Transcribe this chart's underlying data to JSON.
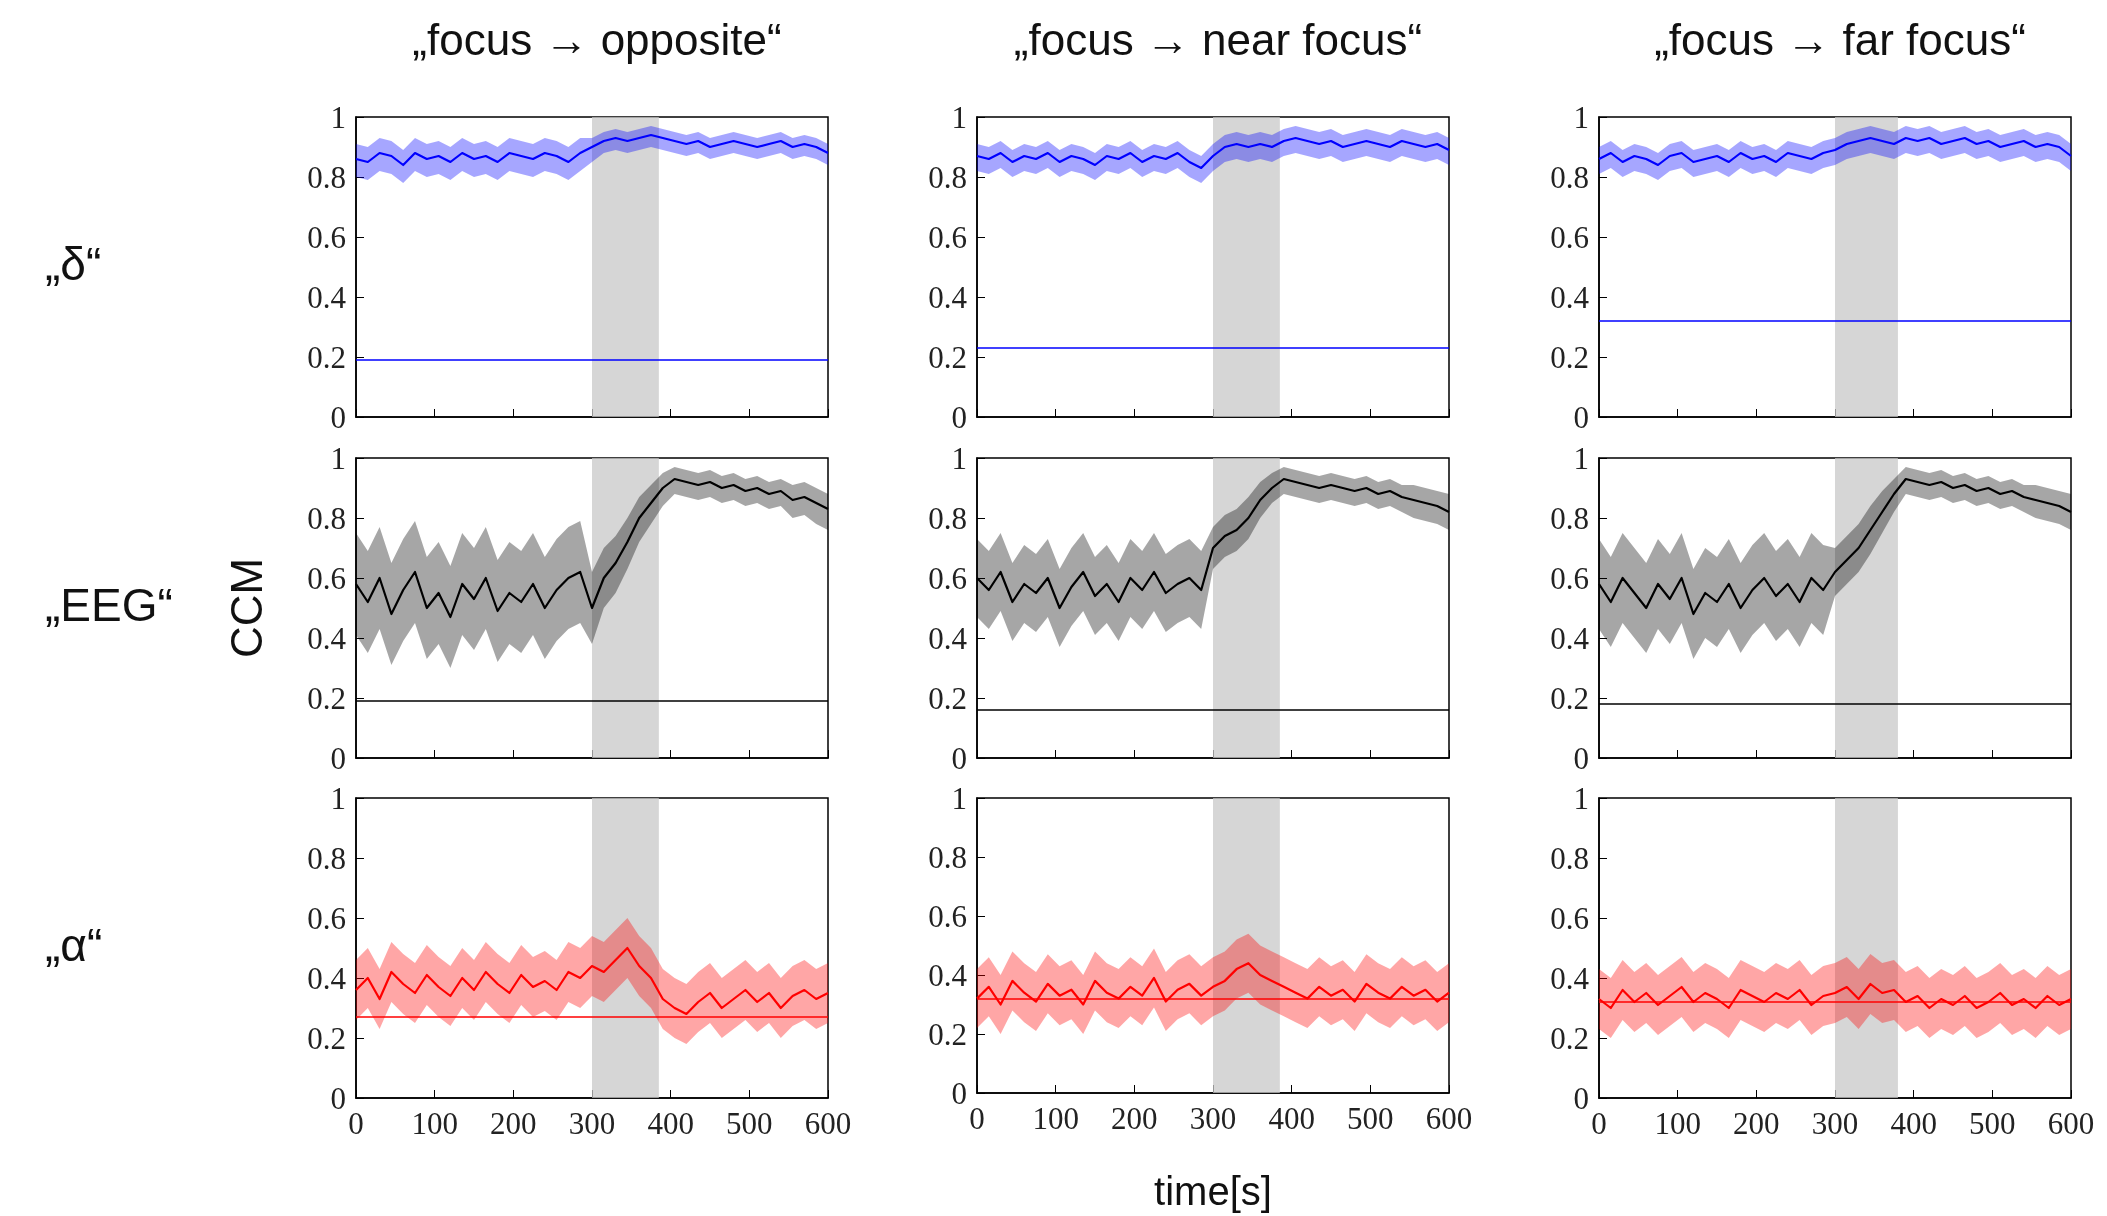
{
  "chart_data": [
    {
      "type": "line",
      "title": "„focus → opposite“",
      "annotations": [
        "„δ“"
      ],
      "tick_labels": "y",
      "xlim": [
        0,
        600
      ],
      "xticks": [
        0,
        100,
        200,
        300,
        400,
        500,
        600
      ],
      "ylim": [
        0,
        1
      ],
      "yticks": [
        0,
        0.2,
        0.4,
        0.6,
        0.8,
        1
      ],
      "x": [
        0,
        15,
        30,
        45,
        60,
        75,
        90,
        105,
        120,
        135,
        150,
        165,
        180,
        195,
        210,
        225,
        240,
        255,
        270,
        285,
        300,
        315,
        330,
        345,
        360,
        375,
        390,
        405,
        420,
        435,
        450,
        465,
        480,
        495,
        510,
        525,
        540,
        555,
        570,
        585,
        600
      ],
      "series": [
        {
          "color": "#0000ff",
          "values": [
            0.86,
            0.85,
            0.88,
            0.87,
            0.84,
            0.88,
            0.86,
            0.87,
            0.85,
            0.88,
            0.86,
            0.87,
            0.85,
            0.88,
            0.87,
            0.86,
            0.88,
            0.87,
            0.85,
            0.88,
            0.9,
            0.92,
            0.93,
            0.92,
            0.93,
            0.94,
            0.93,
            0.92,
            0.91,
            0.92,
            0.9,
            0.91,
            0.92,
            0.91,
            0.9,
            0.91,
            0.92,
            0.9,
            0.91,
            0.9,
            0.88
          ],
          "lower": [
            0.8,
            0.79,
            0.82,
            0.81,
            0.78,
            0.82,
            0.8,
            0.81,
            0.79,
            0.82,
            0.8,
            0.81,
            0.79,
            0.82,
            0.81,
            0.8,
            0.82,
            0.81,
            0.79,
            0.82,
            0.85,
            0.88,
            0.89,
            0.88,
            0.89,
            0.9,
            0.89,
            0.88,
            0.87,
            0.88,
            0.86,
            0.87,
            0.88,
            0.87,
            0.86,
            0.87,
            0.88,
            0.86,
            0.87,
            0.86,
            0.84
          ],
          "upper": [
            0.91,
            0.9,
            0.93,
            0.92,
            0.89,
            0.93,
            0.91,
            0.92,
            0.9,
            0.93,
            0.91,
            0.92,
            0.9,
            0.93,
            0.92,
            0.91,
            0.93,
            0.92,
            0.9,
            0.93,
            0.93,
            0.95,
            0.96,
            0.95,
            0.96,
            0.97,
            0.96,
            0.95,
            0.94,
            0.95,
            0.93,
            0.94,
            0.95,
            0.94,
            0.93,
            0.94,
            0.95,
            0.93,
            0.94,
            0.93,
            0.91
          ]
        }
      ],
      "ref_lines": [
        {
          "axis": "y",
          "value": 0.19,
          "color": "#0000ff"
        }
      ],
      "bands": [
        {
          "axis": "x",
          "from": 300,
          "to": 385,
          "color": "#c8c8c8"
        }
      ]
    },
    {
      "type": "line",
      "title": "„focus → near focus“",
      "tick_labels": "y",
      "xlim": [
        0,
        600
      ],
      "xticks": [
        0,
        100,
        200,
        300,
        400,
        500,
        600
      ],
      "ylim": [
        0,
        1
      ],
      "yticks": [
        0,
        0.2,
        0.4,
        0.6,
        0.8,
        1
      ],
      "x": [
        0,
        15,
        30,
        45,
        60,
        75,
        90,
        105,
        120,
        135,
        150,
        165,
        180,
        195,
        210,
        225,
        240,
        255,
        270,
        285,
        300,
        315,
        330,
        345,
        360,
        375,
        390,
        405,
        420,
        435,
        450,
        465,
        480,
        495,
        510,
        525,
        540,
        555,
        570,
        585,
        600
      ],
      "series": [
        {
          "color": "#0000ff",
          "values": [
            0.87,
            0.86,
            0.88,
            0.85,
            0.87,
            0.86,
            0.88,
            0.85,
            0.87,
            0.86,
            0.84,
            0.87,
            0.86,
            0.88,
            0.85,
            0.87,
            0.86,
            0.88,
            0.85,
            0.83,
            0.87,
            0.9,
            0.91,
            0.9,
            0.91,
            0.9,
            0.92,
            0.93,
            0.92,
            0.91,
            0.92,
            0.9,
            0.91,
            0.92,
            0.91,
            0.9,
            0.92,
            0.91,
            0.9,
            0.91,
            0.89
          ],
          "lower": [
            0.82,
            0.81,
            0.83,
            0.8,
            0.82,
            0.81,
            0.83,
            0.8,
            0.82,
            0.81,
            0.79,
            0.82,
            0.81,
            0.83,
            0.8,
            0.82,
            0.81,
            0.83,
            0.8,
            0.78,
            0.82,
            0.85,
            0.86,
            0.85,
            0.86,
            0.85,
            0.87,
            0.88,
            0.87,
            0.86,
            0.87,
            0.85,
            0.86,
            0.87,
            0.86,
            0.85,
            0.87,
            0.86,
            0.85,
            0.86,
            0.84
          ],
          "upper": [
            0.91,
            0.9,
            0.92,
            0.89,
            0.91,
            0.9,
            0.92,
            0.89,
            0.91,
            0.9,
            0.88,
            0.91,
            0.9,
            0.92,
            0.89,
            0.91,
            0.9,
            0.92,
            0.89,
            0.87,
            0.91,
            0.94,
            0.95,
            0.94,
            0.95,
            0.94,
            0.96,
            0.97,
            0.96,
            0.95,
            0.96,
            0.94,
            0.95,
            0.96,
            0.95,
            0.94,
            0.96,
            0.95,
            0.94,
            0.95,
            0.93
          ]
        }
      ],
      "ref_lines": [
        {
          "axis": "y",
          "value": 0.23,
          "color": "#0000ff"
        }
      ],
      "bands": [
        {
          "axis": "x",
          "from": 300,
          "to": 385,
          "color": "#c8c8c8"
        }
      ]
    },
    {
      "type": "line",
      "title": "„focus → far focus“",
      "tick_labels": "y",
      "xlim": [
        0,
        600
      ],
      "xticks": [
        0,
        100,
        200,
        300,
        400,
        500,
        600
      ],
      "ylim": [
        0,
        1
      ],
      "yticks": [
        0,
        0.2,
        0.4,
        0.6,
        0.8,
        1
      ],
      "x": [
        0,
        15,
        30,
        45,
        60,
        75,
        90,
        105,
        120,
        135,
        150,
        165,
        180,
        195,
        210,
        225,
        240,
        255,
        270,
        285,
        300,
        315,
        330,
        345,
        360,
        375,
        390,
        405,
        420,
        435,
        450,
        465,
        480,
        495,
        510,
        525,
        540,
        555,
        570,
        585,
        600
      ],
      "series": [
        {
          "color": "#0000ff",
          "values": [
            0.86,
            0.88,
            0.85,
            0.87,
            0.86,
            0.84,
            0.87,
            0.88,
            0.85,
            0.86,
            0.87,
            0.85,
            0.88,
            0.86,
            0.87,
            0.85,
            0.88,
            0.87,
            0.86,
            0.88,
            0.89,
            0.91,
            0.92,
            0.93,
            0.92,
            0.91,
            0.93,
            0.92,
            0.93,
            0.91,
            0.92,
            0.93,
            0.91,
            0.92,
            0.9,
            0.91,
            0.92,
            0.9,
            0.91,
            0.9,
            0.87
          ],
          "lower": [
            0.81,
            0.83,
            0.8,
            0.82,
            0.81,
            0.79,
            0.82,
            0.83,
            0.8,
            0.81,
            0.82,
            0.8,
            0.83,
            0.81,
            0.82,
            0.8,
            0.83,
            0.82,
            0.81,
            0.83,
            0.84,
            0.86,
            0.87,
            0.88,
            0.87,
            0.86,
            0.88,
            0.87,
            0.88,
            0.86,
            0.87,
            0.88,
            0.86,
            0.87,
            0.85,
            0.86,
            0.87,
            0.85,
            0.86,
            0.85,
            0.82
          ],
          "upper": [
            0.9,
            0.92,
            0.89,
            0.91,
            0.9,
            0.88,
            0.91,
            0.92,
            0.89,
            0.9,
            0.91,
            0.89,
            0.92,
            0.9,
            0.91,
            0.89,
            0.92,
            0.91,
            0.9,
            0.92,
            0.93,
            0.95,
            0.96,
            0.97,
            0.96,
            0.95,
            0.97,
            0.96,
            0.97,
            0.95,
            0.96,
            0.97,
            0.95,
            0.96,
            0.94,
            0.95,
            0.96,
            0.94,
            0.95,
            0.94,
            0.91
          ]
        }
      ],
      "ref_lines": [
        {
          "axis": "y",
          "value": 0.32,
          "color": "#0000ff"
        }
      ],
      "bands": [
        {
          "axis": "x",
          "from": 300,
          "to": 380,
          "color": "#c8c8c8"
        }
      ]
    },
    {
      "type": "line",
      "ylabel": "CCM",
      "annotations": [
        "„EEG“"
      ],
      "tick_labels": "y",
      "xlim": [
        0,
        600
      ],
      "xticks": [
        0,
        100,
        200,
        300,
        400,
        500,
        600
      ],
      "ylim": [
        0,
        1
      ],
      "yticks": [
        0,
        0.2,
        0.4,
        0.6,
        0.8,
        1
      ],
      "x": [
        0,
        15,
        30,
        45,
        60,
        75,
        90,
        105,
        120,
        135,
        150,
        165,
        180,
        195,
        210,
        225,
        240,
        255,
        270,
        285,
        300,
        315,
        330,
        345,
        360,
        375,
        390,
        405,
        420,
        435,
        450,
        465,
        480,
        495,
        510,
        525,
        540,
        555,
        570,
        585,
        600
      ],
      "series": [
        {
          "color": "#000000",
          "values": [
            0.58,
            0.52,
            0.6,
            0.48,
            0.56,
            0.62,
            0.5,
            0.55,
            0.47,
            0.58,
            0.53,
            0.6,
            0.49,
            0.55,
            0.52,
            0.58,
            0.5,
            0.56,
            0.6,
            0.62,
            0.5,
            0.6,
            0.65,
            0.72,
            0.8,
            0.85,
            0.9,
            0.93,
            0.92,
            0.91,
            0.92,
            0.9,
            0.91,
            0.89,
            0.9,
            0.88,
            0.89,
            0.86,
            0.87,
            0.85,
            0.83
          ],
          "lower": [
            0.41,
            0.35,
            0.43,
            0.31,
            0.39,
            0.45,
            0.33,
            0.38,
            0.3,
            0.41,
            0.36,
            0.43,
            0.32,
            0.38,
            0.35,
            0.41,
            0.33,
            0.39,
            0.43,
            0.45,
            0.38,
            0.5,
            0.55,
            0.63,
            0.72,
            0.78,
            0.84,
            0.88,
            0.87,
            0.86,
            0.87,
            0.85,
            0.86,
            0.84,
            0.85,
            0.83,
            0.84,
            0.8,
            0.81,
            0.78,
            0.76
          ],
          "upper": [
            0.75,
            0.69,
            0.77,
            0.65,
            0.73,
            0.79,
            0.67,
            0.72,
            0.64,
            0.75,
            0.7,
            0.77,
            0.66,
            0.72,
            0.69,
            0.75,
            0.67,
            0.73,
            0.77,
            0.79,
            0.62,
            0.7,
            0.74,
            0.8,
            0.87,
            0.91,
            0.95,
            0.97,
            0.96,
            0.95,
            0.96,
            0.94,
            0.95,
            0.93,
            0.94,
            0.92,
            0.93,
            0.91,
            0.92,
            0.9,
            0.88
          ]
        }
      ],
      "ref_lines": [
        {
          "axis": "y",
          "value": 0.19,
          "color": "#000000"
        }
      ],
      "bands": [
        {
          "axis": "x",
          "from": 300,
          "to": 385,
          "color": "#c8c8c8"
        }
      ]
    },
    {
      "type": "line",
      "tick_labels": "y",
      "xlim": [
        0,
        600
      ],
      "xticks": [
        0,
        100,
        200,
        300,
        400,
        500,
        600
      ],
      "ylim": [
        0,
        1
      ],
      "yticks": [
        0,
        0.2,
        0.4,
        0.6,
        0.8,
        1
      ],
      "x": [
        0,
        15,
        30,
        45,
        60,
        75,
        90,
        105,
        120,
        135,
        150,
        165,
        180,
        195,
        210,
        225,
        240,
        255,
        270,
        285,
        300,
        315,
        330,
        345,
        360,
        375,
        390,
        405,
        420,
        435,
        450,
        465,
        480,
        495,
        510,
        525,
        540,
        555,
        570,
        585,
        600
      ],
      "series": [
        {
          "color": "#000000",
          "values": [
            0.6,
            0.56,
            0.62,
            0.52,
            0.58,
            0.55,
            0.6,
            0.5,
            0.57,
            0.62,
            0.54,
            0.58,
            0.52,
            0.6,
            0.56,
            0.62,
            0.55,
            0.58,
            0.6,
            0.56,
            0.7,
            0.74,
            0.76,
            0.8,
            0.86,
            0.9,
            0.93,
            0.92,
            0.91,
            0.9,
            0.91,
            0.9,
            0.89,
            0.9,
            0.88,
            0.89,
            0.87,
            0.86,
            0.85,
            0.84,
            0.82
          ],
          "lower": [
            0.47,
            0.43,
            0.49,
            0.39,
            0.45,
            0.42,
            0.47,
            0.37,
            0.44,
            0.49,
            0.41,
            0.45,
            0.39,
            0.47,
            0.43,
            0.49,
            0.42,
            0.45,
            0.47,
            0.43,
            0.63,
            0.67,
            0.69,
            0.73,
            0.8,
            0.85,
            0.88,
            0.87,
            0.86,
            0.85,
            0.86,
            0.85,
            0.84,
            0.85,
            0.83,
            0.84,
            0.82,
            0.8,
            0.79,
            0.78,
            0.76
          ],
          "upper": [
            0.73,
            0.69,
            0.75,
            0.65,
            0.71,
            0.68,
            0.73,
            0.63,
            0.7,
            0.75,
            0.67,
            0.71,
            0.65,
            0.73,
            0.69,
            0.75,
            0.68,
            0.71,
            0.73,
            0.69,
            0.77,
            0.81,
            0.83,
            0.87,
            0.92,
            0.95,
            0.97,
            0.96,
            0.95,
            0.94,
            0.95,
            0.94,
            0.93,
            0.94,
            0.92,
            0.93,
            0.91,
            0.91,
            0.9,
            0.89,
            0.88
          ]
        }
      ],
      "ref_lines": [
        {
          "axis": "y",
          "value": 0.16,
          "color": "#000000"
        }
      ],
      "bands": [
        {
          "axis": "x",
          "from": 300,
          "to": 385,
          "color": "#c8c8c8"
        }
      ]
    },
    {
      "type": "line",
      "tick_labels": "y",
      "xlim": [
        0,
        600
      ],
      "xticks": [
        0,
        100,
        200,
        300,
        400,
        500,
        600
      ],
      "ylim": [
        0,
        1
      ],
      "yticks": [
        0,
        0.2,
        0.4,
        0.6,
        0.8,
        1
      ],
      "x": [
        0,
        15,
        30,
        45,
        60,
        75,
        90,
        105,
        120,
        135,
        150,
        165,
        180,
        195,
        210,
        225,
        240,
        255,
        270,
        285,
        300,
        315,
        330,
        345,
        360,
        375,
        390,
        405,
        420,
        435,
        450,
        465,
        480,
        495,
        510,
        525,
        540,
        555,
        570,
        585,
        600
      ],
      "series": [
        {
          "color": "#000000",
          "values": [
            0.58,
            0.52,
            0.6,
            0.55,
            0.5,
            0.58,
            0.53,
            0.6,
            0.48,
            0.55,
            0.52,
            0.58,
            0.5,
            0.56,
            0.6,
            0.54,
            0.58,
            0.52,
            0.6,
            0.56,
            0.62,
            0.66,
            0.7,
            0.76,
            0.82,
            0.88,
            0.93,
            0.92,
            0.91,
            0.92,
            0.9,
            0.91,
            0.89,
            0.9,
            0.88,
            0.89,
            0.87,
            0.86,
            0.85,
            0.84,
            0.82
          ],
          "lower": [
            0.43,
            0.37,
            0.45,
            0.4,
            0.35,
            0.43,
            0.38,
            0.45,
            0.33,
            0.4,
            0.37,
            0.43,
            0.35,
            0.41,
            0.45,
            0.39,
            0.43,
            0.37,
            0.45,
            0.41,
            0.54,
            0.58,
            0.62,
            0.68,
            0.75,
            0.82,
            0.88,
            0.87,
            0.86,
            0.87,
            0.85,
            0.86,
            0.84,
            0.85,
            0.83,
            0.84,
            0.82,
            0.8,
            0.79,
            0.78,
            0.76
          ],
          "upper": [
            0.73,
            0.67,
            0.75,
            0.7,
            0.65,
            0.73,
            0.68,
            0.75,
            0.63,
            0.7,
            0.67,
            0.73,
            0.65,
            0.71,
            0.75,
            0.69,
            0.73,
            0.67,
            0.75,
            0.71,
            0.7,
            0.74,
            0.78,
            0.84,
            0.89,
            0.93,
            0.97,
            0.96,
            0.95,
            0.96,
            0.94,
            0.95,
            0.93,
            0.94,
            0.92,
            0.93,
            0.91,
            0.91,
            0.9,
            0.89,
            0.88
          ]
        }
      ],
      "ref_lines": [
        {
          "axis": "y",
          "value": 0.18,
          "color": "#000000"
        }
      ],
      "bands": [
        {
          "axis": "x",
          "from": 300,
          "to": 380,
          "color": "#c8c8c8"
        }
      ]
    },
    {
      "type": "line",
      "annotations": [
        "„α“"
      ],
      "xlim": [
        0,
        600
      ],
      "xticks": [
        0,
        100,
        200,
        300,
        400,
        500,
        600
      ],
      "ylim": [
        0,
        1
      ],
      "yticks": [
        0,
        0.2,
        0.4,
        0.6,
        0.8,
        1
      ],
      "x": [
        0,
        15,
        30,
        45,
        60,
        75,
        90,
        105,
        120,
        135,
        150,
        165,
        180,
        195,
        210,
        225,
        240,
        255,
        270,
        285,
        300,
        315,
        330,
        345,
        360,
        375,
        390,
        405,
        420,
        435,
        450,
        465,
        480,
        495,
        510,
        525,
        540,
        555,
        570,
        585,
        600
      ],
      "series": [
        {
          "color": "#ff0000",
          "values": [
            0.36,
            0.4,
            0.33,
            0.42,
            0.38,
            0.35,
            0.41,
            0.37,
            0.34,
            0.4,
            0.36,
            0.42,
            0.38,
            0.35,
            0.41,
            0.37,
            0.39,
            0.36,
            0.42,
            0.4,
            0.44,
            0.42,
            0.46,
            0.5,
            0.44,
            0.4,
            0.33,
            0.3,
            0.28,
            0.32,
            0.35,
            0.3,
            0.33,
            0.36,
            0.32,
            0.35,
            0.3,
            0.34,
            0.36,
            0.33,
            0.35
          ],
          "lower": [
            0.26,
            0.3,
            0.23,
            0.32,
            0.28,
            0.25,
            0.31,
            0.27,
            0.24,
            0.3,
            0.26,
            0.32,
            0.28,
            0.25,
            0.31,
            0.27,
            0.29,
            0.26,
            0.32,
            0.3,
            0.34,
            0.32,
            0.36,
            0.4,
            0.34,
            0.3,
            0.23,
            0.2,
            0.18,
            0.22,
            0.25,
            0.2,
            0.23,
            0.26,
            0.22,
            0.25,
            0.2,
            0.24,
            0.26,
            0.23,
            0.25
          ],
          "upper": [
            0.46,
            0.5,
            0.43,
            0.52,
            0.48,
            0.45,
            0.51,
            0.47,
            0.44,
            0.5,
            0.46,
            0.52,
            0.48,
            0.45,
            0.51,
            0.47,
            0.49,
            0.46,
            0.52,
            0.5,
            0.54,
            0.52,
            0.56,
            0.6,
            0.54,
            0.5,
            0.43,
            0.4,
            0.38,
            0.42,
            0.45,
            0.4,
            0.43,
            0.46,
            0.42,
            0.45,
            0.4,
            0.44,
            0.46,
            0.43,
            0.45
          ]
        }
      ],
      "ref_lines": [
        {
          "axis": "y",
          "value": 0.27,
          "color": "#ff0000"
        }
      ],
      "bands": [
        {
          "axis": "x",
          "from": 300,
          "to": 385,
          "color": "#c8c8c8"
        }
      ]
    },
    {
      "type": "line",
      "xlabel": "time[s]",
      "xlim": [
        0,
        600
      ],
      "xticks": [
        0,
        100,
        200,
        300,
        400,
        500,
        600
      ],
      "ylim": [
        0,
        1
      ],
      "yticks": [
        0,
        0.2,
        0.4,
        0.6,
        0.8,
        1
      ],
      "x": [
        0,
        15,
        30,
        45,
        60,
        75,
        90,
        105,
        120,
        135,
        150,
        165,
        180,
        195,
        210,
        225,
        240,
        255,
        270,
        285,
        300,
        315,
        330,
        345,
        360,
        375,
        390,
        405,
        420,
        435,
        450,
        465,
        480,
        495,
        510,
        525,
        540,
        555,
        570,
        585,
        600
      ],
      "series": [
        {
          "color": "#ff0000",
          "values": [
            0.32,
            0.36,
            0.3,
            0.38,
            0.34,
            0.31,
            0.37,
            0.33,
            0.35,
            0.3,
            0.38,
            0.34,
            0.32,
            0.36,
            0.33,
            0.39,
            0.31,
            0.35,
            0.37,
            0.33,
            0.36,
            0.38,
            0.42,
            0.44,
            0.4,
            0.38,
            0.36,
            0.34,
            0.32,
            0.36,
            0.33,
            0.35,
            0.31,
            0.37,
            0.34,
            0.32,
            0.36,
            0.33,
            0.35,
            0.31,
            0.34
          ],
          "lower": [
            0.22,
            0.26,
            0.2,
            0.28,
            0.24,
            0.21,
            0.27,
            0.23,
            0.25,
            0.2,
            0.28,
            0.24,
            0.22,
            0.26,
            0.23,
            0.29,
            0.21,
            0.25,
            0.27,
            0.23,
            0.26,
            0.28,
            0.32,
            0.34,
            0.3,
            0.28,
            0.26,
            0.24,
            0.22,
            0.26,
            0.23,
            0.25,
            0.21,
            0.27,
            0.24,
            0.22,
            0.26,
            0.23,
            0.25,
            0.21,
            0.24
          ],
          "upper": [
            0.42,
            0.46,
            0.4,
            0.48,
            0.44,
            0.41,
            0.47,
            0.43,
            0.45,
            0.4,
            0.48,
            0.44,
            0.42,
            0.46,
            0.43,
            0.49,
            0.41,
            0.45,
            0.47,
            0.43,
            0.46,
            0.48,
            0.52,
            0.54,
            0.5,
            0.48,
            0.46,
            0.44,
            0.42,
            0.46,
            0.43,
            0.45,
            0.41,
            0.47,
            0.44,
            0.42,
            0.46,
            0.43,
            0.45,
            0.41,
            0.44
          ]
        }
      ],
      "ref_lines": [
        {
          "axis": "y",
          "value": 0.32,
          "color": "#ff0000"
        }
      ],
      "bands": [
        {
          "axis": "x",
          "from": 300,
          "to": 385,
          "color": "#c8c8c8"
        }
      ]
    },
    {
      "type": "line",
      "xlim": [
        0,
        600
      ],
      "xticks": [
        0,
        100,
        200,
        300,
        400,
        500,
        600
      ],
      "ylim": [
        0,
        1
      ],
      "yticks": [
        0,
        0.2,
        0.4,
        0.6,
        0.8,
        1
      ],
      "x": [
        0,
        15,
        30,
        45,
        60,
        75,
        90,
        105,
        120,
        135,
        150,
        165,
        180,
        195,
        210,
        225,
        240,
        255,
        270,
        285,
        300,
        315,
        330,
        345,
        360,
        375,
        390,
        405,
        420,
        435,
        450,
        465,
        480,
        495,
        510,
        525,
        540,
        555,
        570,
        585,
        600
      ],
      "series": [
        {
          "color": "#ff0000",
          "values": [
            0.33,
            0.3,
            0.36,
            0.32,
            0.35,
            0.31,
            0.34,
            0.37,
            0.32,
            0.35,
            0.33,
            0.3,
            0.36,
            0.34,
            0.32,
            0.35,
            0.33,
            0.36,
            0.31,
            0.34,
            0.35,
            0.37,
            0.33,
            0.38,
            0.35,
            0.36,
            0.32,
            0.34,
            0.3,
            0.33,
            0.31,
            0.34,
            0.3,
            0.32,
            0.35,
            0.31,
            0.33,
            0.3,
            0.34,
            0.31,
            0.33
          ],
          "lower": [
            0.23,
            0.2,
            0.26,
            0.22,
            0.25,
            0.21,
            0.24,
            0.27,
            0.22,
            0.25,
            0.23,
            0.2,
            0.26,
            0.24,
            0.22,
            0.25,
            0.23,
            0.26,
            0.21,
            0.24,
            0.25,
            0.27,
            0.23,
            0.28,
            0.25,
            0.26,
            0.22,
            0.24,
            0.2,
            0.23,
            0.21,
            0.24,
            0.2,
            0.22,
            0.25,
            0.21,
            0.23,
            0.2,
            0.24,
            0.21,
            0.23
          ],
          "upper": [
            0.43,
            0.4,
            0.46,
            0.42,
            0.45,
            0.41,
            0.44,
            0.47,
            0.42,
            0.45,
            0.43,
            0.4,
            0.46,
            0.44,
            0.42,
            0.45,
            0.43,
            0.46,
            0.41,
            0.44,
            0.45,
            0.47,
            0.43,
            0.48,
            0.45,
            0.46,
            0.42,
            0.44,
            0.4,
            0.43,
            0.41,
            0.44,
            0.4,
            0.42,
            0.45,
            0.41,
            0.43,
            0.4,
            0.44,
            0.41,
            0.43
          ]
        }
      ],
      "ref_lines": [
        {
          "axis": "y",
          "value": 0.32,
          "color": "#ff0000"
        }
      ],
      "bands": [
        {
          "axis": "x",
          "from": 300,
          "to": 380,
          "color": "#c8c8c8"
        }
      ]
    }
  ]
}
